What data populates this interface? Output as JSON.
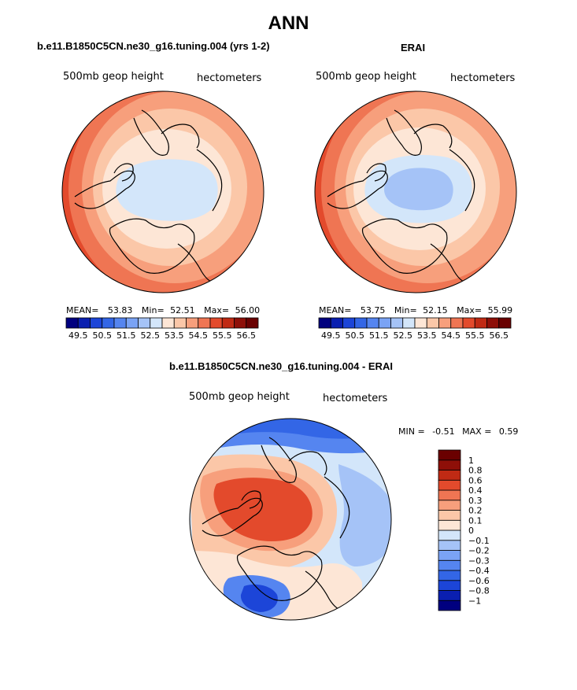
{
  "figure_title": "ANN",
  "chart_data": [
    {
      "type": "heatmap",
      "projection": "north polar stereographic",
      "title": "b.e11.B1850C5CN.ne30_g16.tuning.004 (yrs 1-2)",
      "variable": "500mb geop height",
      "units": "hectometers",
      "stats": {
        "mean_label": "MEAN=",
        "mean": "53.83",
        "min_label": "Min=",
        "min": "52.51",
        "max_label": "Max=",
        "max": "56.00"
      },
      "colorbar": {
        "orientation": "horizontal",
        "levels": [
          49.5,
          50.0,
          50.5,
          51.0,
          51.5,
          52.0,
          52.5,
          53.0,
          53.5,
          54.0,
          54.5,
          55.0,
          55.5,
          56.0,
          56.5
        ],
        "tick_labels": [
          "49.5",
          "50.5",
          "51.5",
          "52.5",
          "53.5",
          "54.5",
          "55.5",
          "56.5"
        ],
        "colors": [
          "#00007f",
          "#0a1fb0",
          "#1c45d8",
          "#3366e6",
          "#5585f0",
          "#7aa3f5",
          "#a5c3f7",
          "#d3e6fa",
          "#fde6d6",
          "#fbc7a8",
          "#f79f7c",
          "#ef7553",
          "#e34a2c",
          "#c02a14",
          "#8e0f08",
          "#6a0000"
        ]
      }
    },
    {
      "type": "heatmap",
      "projection": "north polar stereographic",
      "title": "ERAI",
      "variable": "500mb geop height",
      "units": "hectometers",
      "stats": {
        "mean_label": "MEAN=",
        "mean": "53.75",
        "min_label": "Min=",
        "min": "52.15",
        "max_label": "Max=",
        "max": "55.99"
      },
      "colorbar": {
        "orientation": "horizontal",
        "levels": [
          49.5,
          50.0,
          50.5,
          51.0,
          51.5,
          52.0,
          52.5,
          53.0,
          53.5,
          54.0,
          54.5,
          55.0,
          55.5,
          56.0,
          56.5
        ],
        "tick_labels": [
          "49.5",
          "50.5",
          "51.5",
          "52.5",
          "53.5",
          "54.5",
          "55.5",
          "56.5"
        ],
        "colors": [
          "#00007f",
          "#0a1fb0",
          "#1c45d8",
          "#3366e6",
          "#5585f0",
          "#7aa3f5",
          "#a5c3f7",
          "#d3e6fa",
          "#fde6d6",
          "#fbc7a8",
          "#f79f7c",
          "#ef7553",
          "#e34a2c",
          "#c02a14",
          "#8e0f08",
          "#6a0000"
        ]
      }
    },
    {
      "type": "heatmap",
      "projection": "north polar stereographic",
      "title": "b.e11.B1850C5CN.ne30_g16.tuning.004 - ERAI",
      "variable": "500mb geop height",
      "units": "hectometers",
      "stats": {
        "min_label": "MIN =",
        "min": "-0.51",
        "max_label": "MAX =",
        "max": "0.59"
      },
      "colorbar": {
        "orientation": "vertical",
        "levels": [
          -1,
          -0.8,
          -0.6,
          -0.4,
          -0.3,
          -0.2,
          -0.1,
          0,
          0.1,
          0.2,
          0.3,
          0.4,
          0.6,
          0.8,
          1
        ],
        "tick_labels": [
          "−1",
          "−0.8",
          "−0.6",
          "−0.4",
          "−0.3",
          "−0.2",
          "−0.1",
          "0",
          "0.1",
          "0.2",
          "0.3",
          "0.4",
          "0.6",
          "0.8",
          "1"
        ],
        "colors": [
          "#00007f",
          "#0a1fb0",
          "#1c45d8",
          "#3366e6",
          "#5585f0",
          "#7aa3f5",
          "#a5c3f7",
          "#d3e6fa",
          "#fde6d6",
          "#fbc7a8",
          "#f79f7c",
          "#ef7553",
          "#e34a2c",
          "#c02a14",
          "#8e0f08",
          "#6a0000"
        ]
      }
    }
  ]
}
